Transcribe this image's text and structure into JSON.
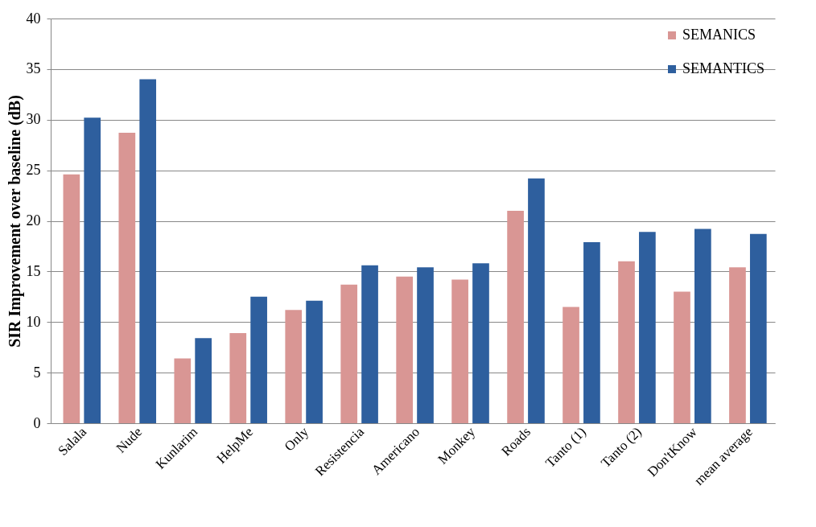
{
  "chart_data": {
    "type": "bar",
    "ylabel": "SIR Improvement over baseline (dB)",
    "categories": [
      "Salala",
      "Nude",
      "Kunlarim",
      "HelpMe",
      "Only",
      "Resistencia",
      "Americano",
      "Monkey",
      "Roads",
      "Tanto (1)",
      "Tanto (2)",
      "Don'tKnow",
      "mean average"
    ],
    "series": [
      {
        "name": "SEMANICS",
        "color": "#d99694",
        "values": [
          24.6,
          28.7,
          6.4,
          8.9,
          11.2,
          13.7,
          14.5,
          14.2,
          21.0,
          11.5,
          16.0,
          13.0,
          15.4
        ]
      },
      {
        "name": "SEMANTICS",
        "color": "#2e5f9e",
        "values": [
          30.2,
          34.0,
          8.4,
          12.5,
          12.1,
          15.6,
          15.4,
          15.8,
          24.2,
          17.9,
          18.9,
          19.2,
          18.7
        ]
      }
    ],
    "ylim": [
      0,
      40
    ],
    "yticks": [
      0,
      5,
      10,
      15,
      20,
      25,
      30,
      35,
      40
    ],
    "grid": "y",
    "legend": "top right"
  }
}
